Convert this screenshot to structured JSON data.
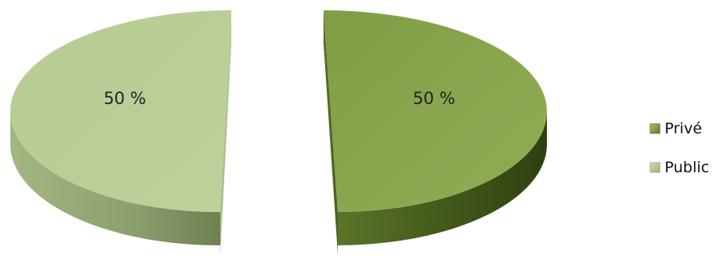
{
  "chart_data": {
    "type": "pie",
    "style": "3d-exploded",
    "categories": [
      "Privé",
      "Public"
    ],
    "values": [
      50,
      50
    ],
    "value_format": "percent",
    "data_labels": [
      "50 %",
      "50 %"
    ],
    "title": "",
    "legend": {
      "placement": "right",
      "entries": [
        "Privé",
        "Public"
      ]
    },
    "colors": {
      "Privé": "#8aa750",
      "Public": "#b8cd94"
    }
  }
}
